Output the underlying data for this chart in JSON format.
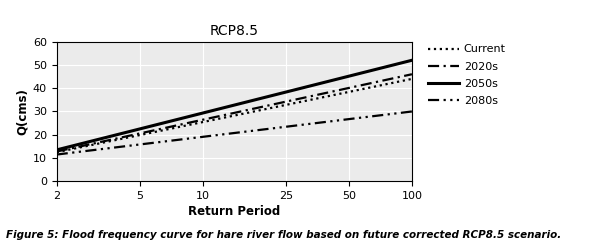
{
  "title": "RCP8.5",
  "xlabel": "Return Period",
  "ylabel": "Q(cms)",
  "caption": "Figure 5: Flood frequency curve for hare river flow based on future corrected RCP8.5 scenario.",
  "x_ticks": [
    2,
    5,
    10,
    25,
    50,
    100
  ],
  "ylim": [
    0,
    60
  ],
  "xlim": [
    2,
    100
  ],
  "lines": [
    {
      "label": "Current",
      "style": "dotted",
      "linewidth": 1.6,
      "color": "#000000",
      "y_at_2": 12.5,
      "y_at_100": 44.0
    },
    {
      "label": "2020s",
      "style": "dash_dot",
      "linewidth": 1.6,
      "color": "#000000",
      "y_at_2": 12.8,
      "y_at_100": 46.0
    },
    {
      "label": "2050s",
      "style": "solid",
      "linewidth": 2.2,
      "color": "#000000",
      "y_at_2": 13.5,
      "y_at_100": 52.0
    },
    {
      "label": "2080s",
      "style": "dash_dot2",
      "linewidth": 1.6,
      "color": "#000000",
      "y_at_2": 11.5,
      "y_at_100": 30.0
    }
  ],
  "background_color": "#ebebeb",
  "grid_color": "#ffffff",
  "title_fontsize": 10,
  "label_fontsize": 8.5,
  "tick_fontsize": 8,
  "caption_fontsize": 7.5,
  "legend_fontsize": 8
}
